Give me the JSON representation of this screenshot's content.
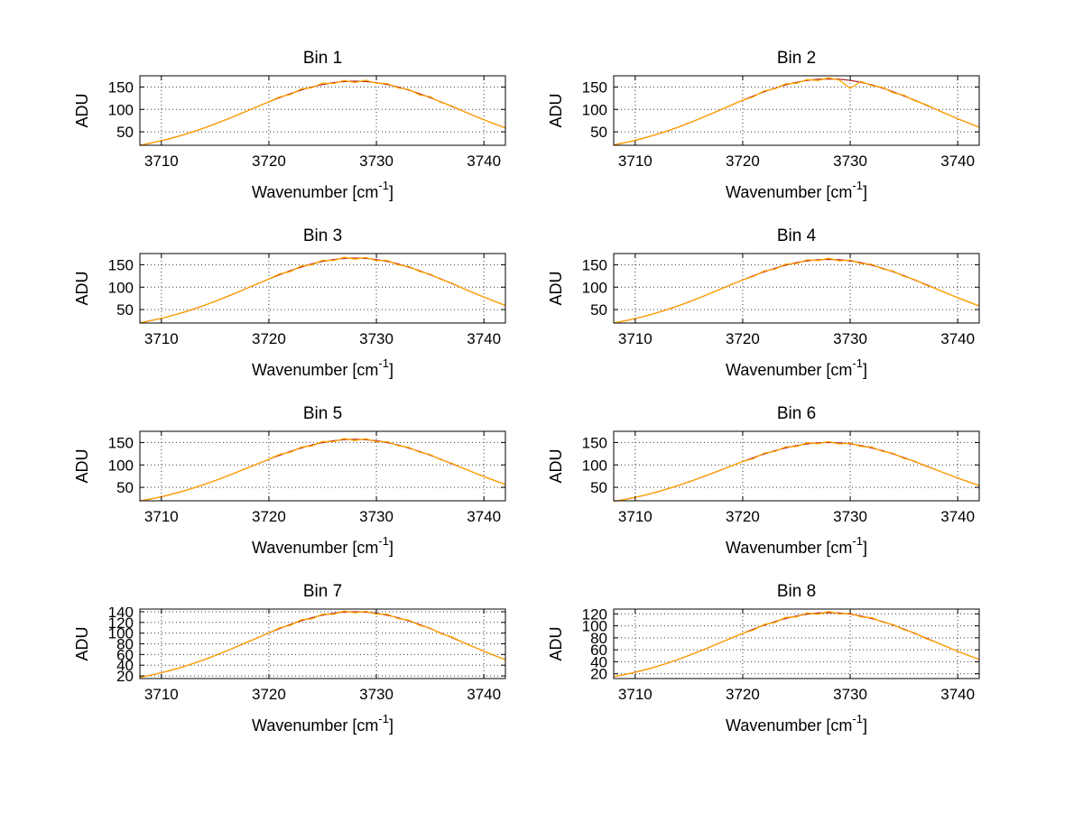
{
  "chart_data": {
    "type": "line",
    "layout": "4x2-subplots",
    "grid": "dotted",
    "legend_position": "none",
    "colors": {
      "data": "#FFA500",
      "fit": "#B22222",
      "axis": "#000000",
      "grid": "#3a3a3a"
    },
    "ylabel": "ADU",
    "xlabel": {
      "pre": "Wavenumber [cm",
      "sup": "-1",
      "post": "]"
    },
    "xlim": [
      3708,
      3742
    ],
    "xticks": [
      3710,
      3720,
      3730,
      3740
    ],
    "x": [
      3708,
      3709,
      3710,
      3711,
      3712,
      3713,
      3714,
      3715,
      3716,
      3717,
      3718,
      3719,
      3720,
      3721,
      3722,
      3723,
      3724,
      3725,
      3726,
      3727,
      3728,
      3729,
      3730,
      3731,
      3732,
      3733,
      3734,
      3735,
      3736,
      3737,
      3738,
      3739,
      3740,
      3741,
      3742
    ],
    "subplots": [
      {
        "title": "Bin 1",
        "ylim": [
          20,
          175
        ],
        "yticks": [
          50,
          100,
          150
        ],
        "fit": {
          "center": 3728,
          "sigma": 9.8,
          "peak": 163
        },
        "values": [
          20.3,
          24.9,
          30.2,
          36.2,
          43.0,
          50.5,
          58.7,
          67.6,
          77.0,
          86.8,
          96.8,
          106.9,
          116.8,
          127.8,
          133.1,
          145.6,
          148.5,
          158.6,
          157.4,
          164.6,
          160.0,
          165.1,
          158.4,
          157.6,
          148.0,
          144.6,
          132.6,
          128.3,
          115.8,
          107.9,
          96.8,
          86.8,
          77.0,
          67.6,
          58.7
        ]
      },
      {
        "title": "Bin 2",
        "ylim": [
          20,
          175
        ],
        "yticks": [
          50,
          100,
          150
        ],
        "fit": {
          "center": 3728,
          "sigma": 9.8,
          "peak": 168
        },
        "values": [
          20.9,
          25.6,
          31.1,
          37.3,
          44.3,
          52.0,
          60.5,
          69.7,
          79.4,
          89.5,
          99.8,
          110.2,
          120.4,
          128.2,
          141.3,
          146.0,
          157.1,
          158.3,
          166.5,
          164.6,
          170.5,
          165.1,
          147.0,
          162.3,
          153.1,
          149.0,
          137.3,
          131.7,
          119.4,
          111.2,
          99.8,
          89.5,
          79.4,
          69.7,
          60.5
        ]
      },
      {
        "title": "Bin 3",
        "ylim": [
          20,
          175
        ],
        "yticks": [
          50,
          100,
          150
        ],
        "fit": {
          "center": 3728,
          "sigma": 9.8,
          "peak": 165
        },
        "values": [
          20.5,
          25.2,
          30.5,
          36.6,
          43.5,
          51.1,
          59.4,
          68.4,
          77.9,
          87.9,
          98.0,
          108.2,
          118.2,
          129.8,
          134.8,
          147.4,
          149.8,
          159.9,
          159.6,
          166.6,
          162.5,
          166.1,
          159.6,
          159.4,
          149.8,
          146.4,
          135.3,
          129.3,
          117.2,
          109.2,
          98.0,
          87.9,
          77.9,
          68.4,
          59.4
        ]
      },
      {
        "title": "Bin 4",
        "ylim": [
          20,
          175
        ],
        "yticks": [
          50,
          100,
          150
        ],
        "fit": {
          "center": 3728,
          "sigma": 9.8,
          "peak": 162
        },
        "values": [
          20.2,
          24.7,
          30.0,
          36.0,
          42.7,
          50.2,
          58.4,
          67.2,
          76.5,
          86.3,
          96.2,
          106.2,
          116.1,
          124.0,
          136.3,
          140.2,
          151.5,
          152.6,
          161.2,
          159.2,
          164.5,
          158.7,
          160.7,
          152.6,
          151.0,
          140.7,
          135.8,
          124.0,
          117.1,
          105.2,
          96.2,
          86.3,
          76.5,
          67.2,
          58.4
        ]
      },
      {
        "title": "Bin 5",
        "ylim": [
          20,
          175
        ],
        "yticks": [
          50,
          100,
          150
        ],
        "fit": {
          "center": 3728,
          "sigma": 9.8,
          "peak": 157
        },
        "values": [
          19.5,
          24.0,
          29.0,
          34.9,
          41.4,
          48.6,
          56.6,
          65.1,
          74.2,
          83.6,
          93.3,
          103.0,
          112.5,
          123.6,
          128.2,
          139.8,
          142.4,
          152.3,
          151.8,
          158.7,
          154.5,
          158.2,
          151.8,
          151.8,
          142.9,
          139.3,
          128.7,
          123.1,
          111.5,
          104.0,
          93.3,
          83.6,
          74.2,
          65.1,
          56.6
        ]
      },
      {
        "title": "Bin 6",
        "ylim": [
          20,
          175
        ],
        "yticks": [
          50,
          100,
          150
        ],
        "fit": {
          "center": 3728,
          "sigma": 9.8,
          "peak": 150
        },
        "values": [
          18.7,
          22.9,
          27.8,
          33.3,
          39.5,
          46.5,
          54.0,
          62.2,
          70.9,
          79.9,
          89.1,
          98.4,
          107.5,
          114.2,
          126.4,
          130.2,
          140.5,
          141.1,
          149.4,
          147.2,
          152.0,
          146.7,
          148.9,
          141.1,
          140.0,
          130.2,
          125.9,
          114.7,
          108.5,
          97.4,
          89.1,
          79.9,
          70.9,
          62.2,
          54.0
        ]
      },
      {
        "title": "Bin 7",
        "ylim": [
          15,
          145
        ],
        "yticks": [
          20,
          40,
          60,
          80,
          100,
          120,
          140
        ],
        "fit": {
          "center": 3728,
          "sigma": 9.8,
          "peak": 140
        },
        "values": [
          17.4,
          21.4,
          25.9,
          31.1,
          36.9,
          43.4,
          50.4,
          58.1,
          66.1,
          74.6,
          83.2,
          91.8,
          100.3,
          110.0,
          114.6,
          124.9,
          126.8,
          135.6,
          135.1,
          141.3,
          138.0,
          140.8,
          135.6,
          135.6,
          127.3,
          124.4,
          114.6,
          109.5,
          99.3,
          92.8,
          83.2,
          74.6,
          66.1,
          58.1,
          50.4
        ]
      },
      {
        "title": "Bin 8",
        "ylim": [
          12,
          128
        ],
        "yticks": [
          20,
          40,
          60,
          80,
          100,
          120
        ],
        "fit": {
          "center": 3728,
          "sigma": 9.8,
          "peak": 122
        },
        "values": [
          15.2,
          18.6,
          22.6,
          27.1,
          32.2,
          37.8,
          44.0,
          50.6,
          57.6,
          65.0,
          72.5,
          80.0,
          87.4,
          93.0,
          102.6,
          105.6,
          114.2,
          114.9,
          121.5,
          119.4,
          124.0,
          119.9,
          121.0,
          114.9,
          113.7,
          106.1,
          102.1,
          93.5,
          88.4,
          79.0,
          72.5,
          65.0,
          57.6,
          50.6,
          44.0
        ]
      }
    ]
  }
}
